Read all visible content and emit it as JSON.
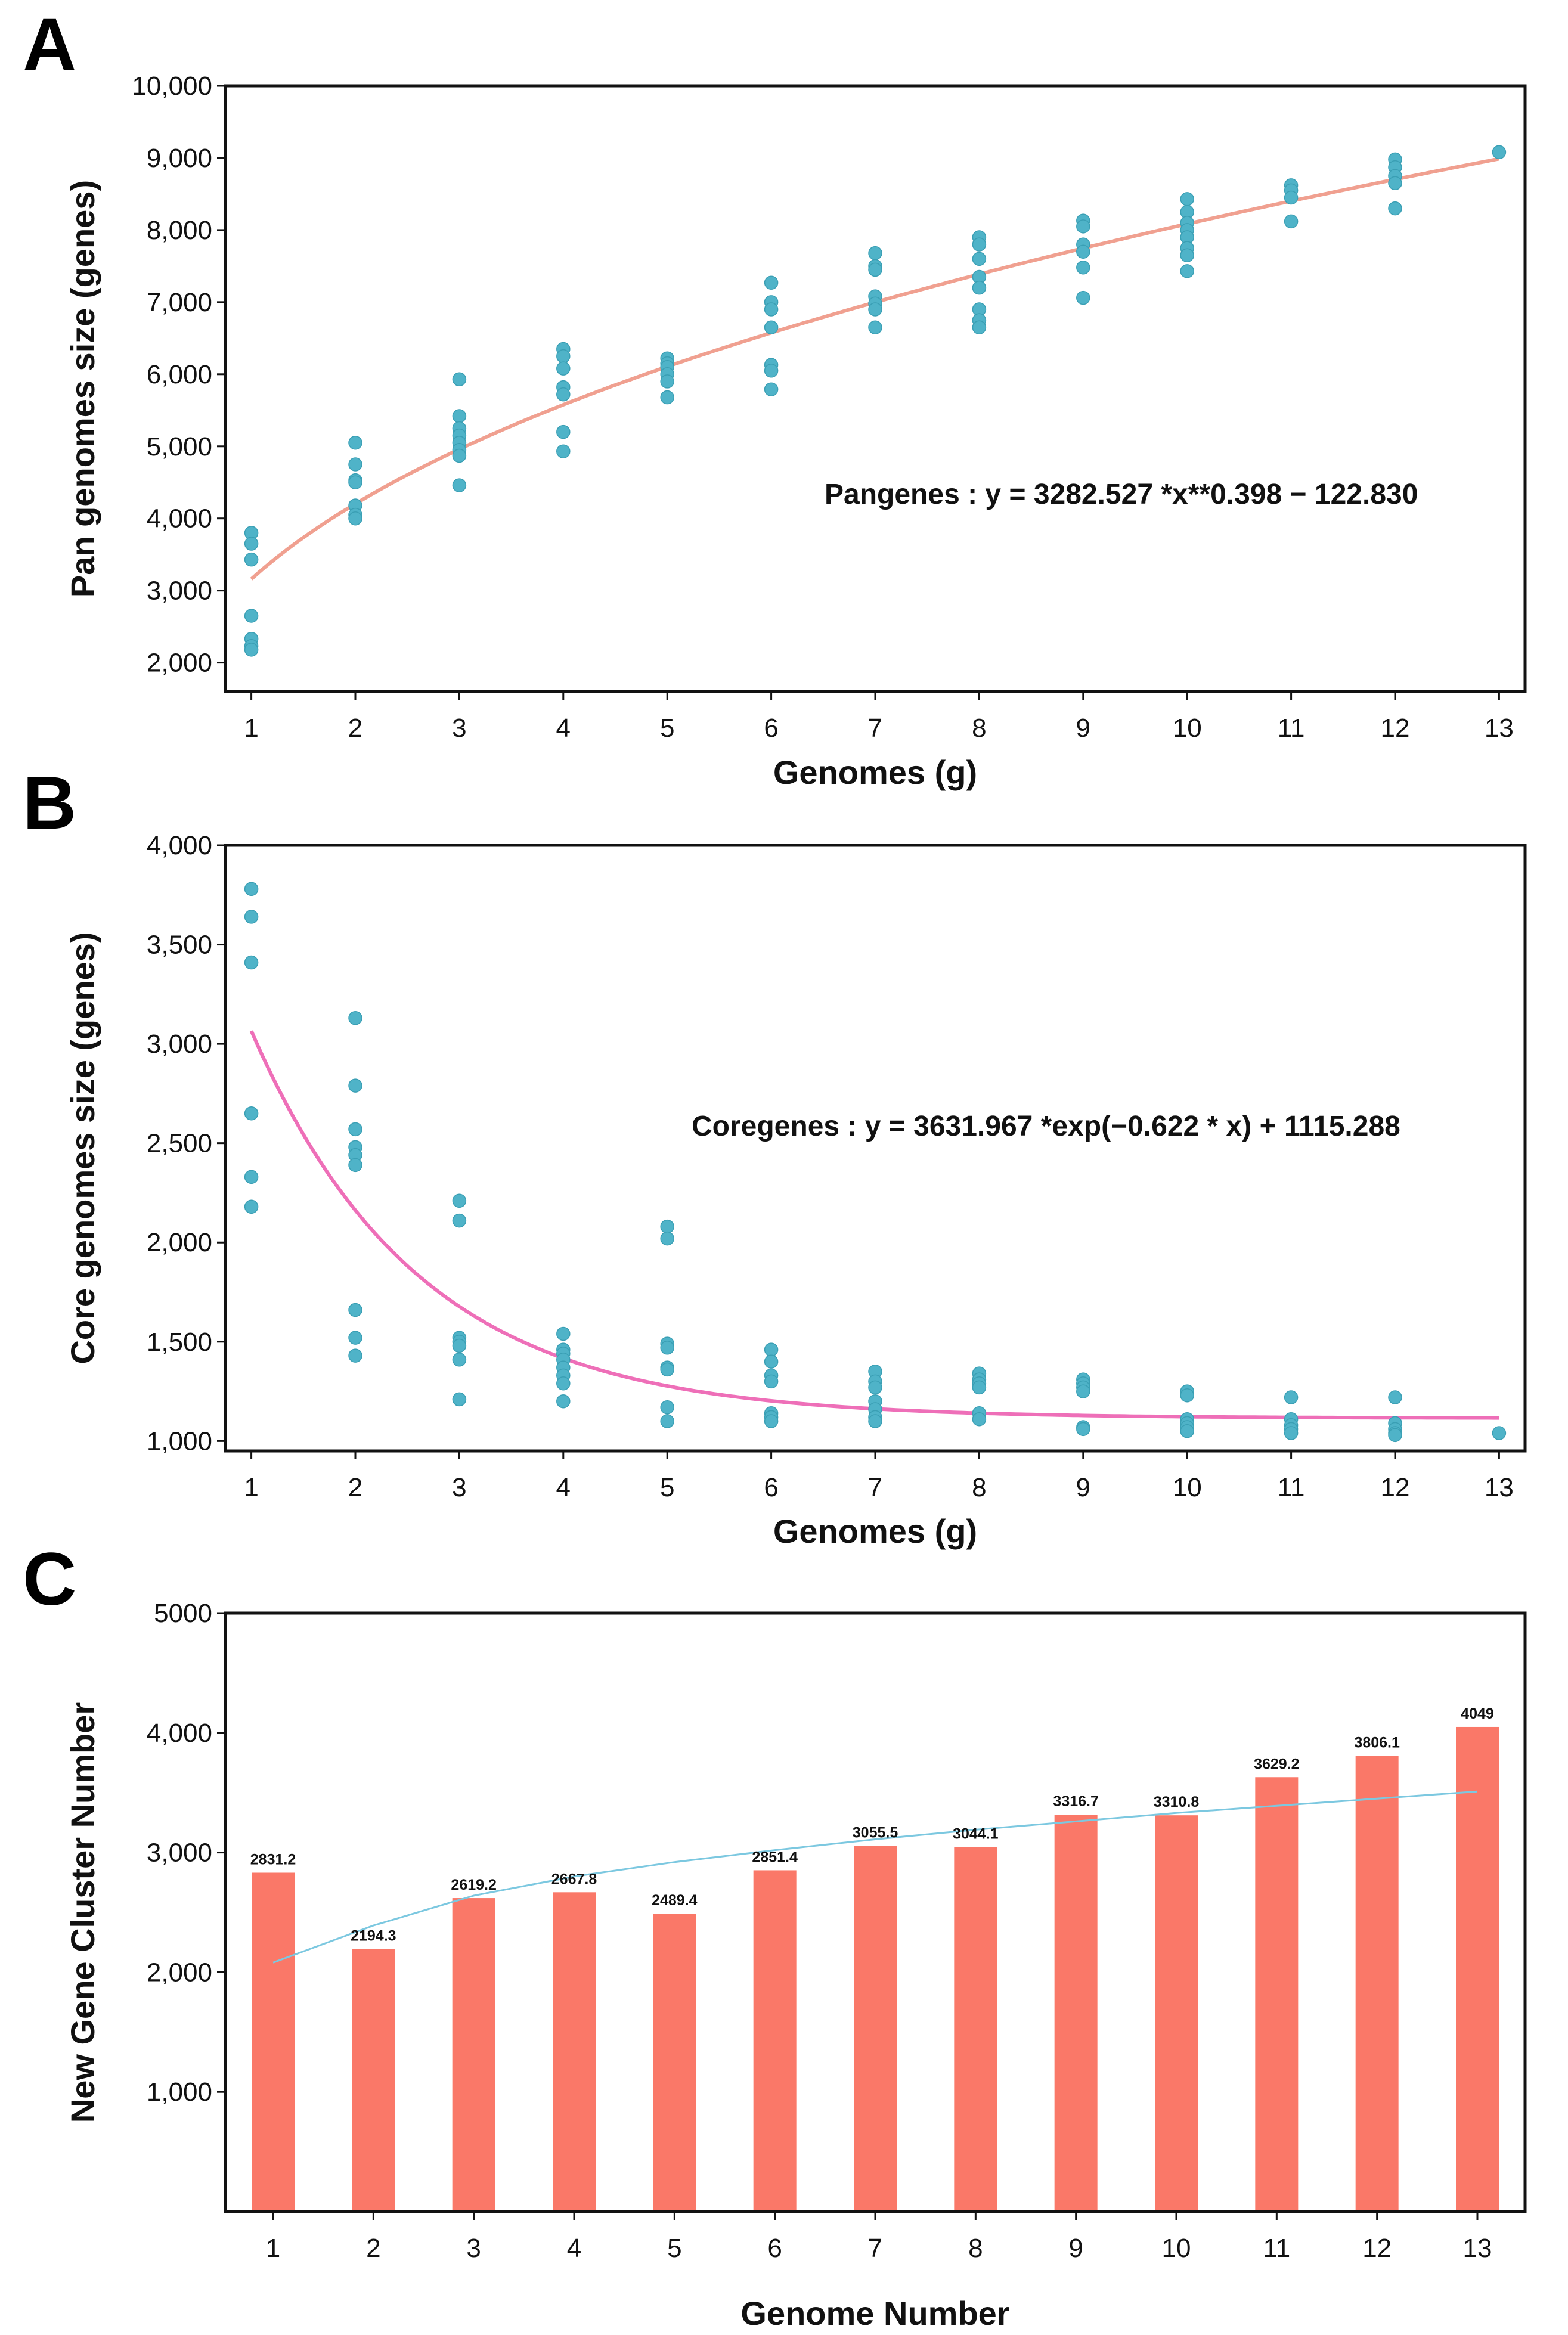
{
  "chart_data": [
    {
      "panel": "A",
      "type": "scatter",
      "xlabel": "Genomes (g)",
      "ylabel": "Pan genomes size (genes)",
      "xlim": [
        0.75,
        13.25
      ],
      "ylim": [
        1600,
        10000
      ],
      "yticks": [
        2000,
        3000,
        4000,
        5000,
        6000,
        7000,
        8000,
        9000,
        10000
      ],
      "ytick_labels": [
        "2,000",
        "3,000",
        "4,000",
        "5,000",
        "6,000",
        "7,000",
        "8,000",
        "9,000",
        "10,000"
      ],
      "xticks": [
        "1",
        "2",
        "3",
        "4",
        "5",
        "6",
        "7",
        "8",
        "9",
        "10",
        "11",
        "12",
        "13"
      ],
      "points_color": "#4fb3c8",
      "fit_color": "#f0a090",
      "equation": "Pangenes : y = 3282.527 *x**0.398 − 122.830",
      "fit": {
        "a": 3282.527,
        "b": 0.398,
        "c": -122.83,
        "form": "power"
      },
      "series": [
        {
          "x": 1,
          "values": [
            3800,
            3650,
            3430,
            2650,
            2330,
            2230,
            2180
          ]
        },
        {
          "x": 2,
          "values": [
            5050,
            4750,
            4530,
            4500,
            4180,
            4050,
            4000
          ]
        },
        {
          "x": 3,
          "values": [
            5930,
            5420,
            5250,
            5150,
            5050,
            4950,
            4870,
            4460
          ]
        },
        {
          "x": 4,
          "values": [
            6350,
            6250,
            6080,
            5820,
            5720,
            5200,
            4930
          ]
        },
        {
          "x": 5,
          "values": [
            6220,
            6150,
            6100,
            6000,
            5900,
            5680
          ]
        },
        {
          "x": 6,
          "values": [
            7270,
            7000,
            6900,
            6650,
            6130,
            6050,
            5790
          ]
        },
        {
          "x": 7,
          "values": [
            7680,
            7500,
            7450,
            7080,
            6980,
            6900,
            6650
          ]
        },
        {
          "x": 8,
          "values": [
            7900,
            7800,
            7600,
            7350,
            7200,
            6900,
            6750,
            6650
          ]
        },
        {
          "x": 9,
          "values": [
            8130,
            8050,
            7800,
            7700,
            7480,
            7060
          ]
        },
        {
          "x": 10,
          "values": [
            8430,
            8250,
            8100,
            8000,
            7900,
            7750,
            7650,
            7430
          ]
        },
        {
          "x": 11,
          "values": [
            8620,
            8550,
            8450,
            8120
          ]
        },
        {
          "x": 12,
          "values": [
            8980,
            8870,
            8750,
            8650,
            8300
          ]
        },
        {
          "x": 13,
          "values": [
            9080
          ]
        }
      ]
    },
    {
      "panel": "B",
      "type": "scatter",
      "xlabel": "Genomes (g)",
      "ylabel": "Core genomes size (genes)",
      "xlim": [
        0.75,
        13.25
      ],
      "ylim": [
        950,
        4000
      ],
      "yticks": [
        1000,
        1500,
        2000,
        2500,
        3000,
        3500,
        4000
      ],
      "ytick_labels": [
        "1,000",
        "1,500",
        "2,000",
        "2,500",
        "3,000",
        "3,500",
        "4,000"
      ],
      "xticks": [
        "1",
        "2",
        "3",
        "4",
        "5",
        "6",
        "7",
        "8",
        "9",
        "10",
        "11",
        "12",
        "13"
      ],
      "points_color": "#4fb3c8",
      "fit_color": "#ee6fb8",
      "equation": "Coregenes : y = 3631.967 *exp(−0.622 * x) + 1115.288",
      "fit": {
        "a": 3631.967,
        "b": -0.622,
        "c": 1115.288,
        "form": "exp"
      },
      "series": [
        {
          "x": 1,
          "values": [
            3780,
            3640,
            3410,
            2650,
            2330,
            2180
          ]
        },
        {
          "x": 2,
          "values": [
            3130,
            2790,
            2570,
            2480,
            2440,
            2390,
            1660,
            1520,
            1430
          ]
        },
        {
          "x": 3,
          "values": [
            2210,
            2110,
            1520,
            1500,
            1480,
            1410,
            1210
          ]
        },
        {
          "x": 4,
          "values": [
            1540,
            1460,
            1440,
            1410,
            1370,
            1330,
            1290,
            1200
          ]
        },
        {
          "x": 5,
          "values": [
            2080,
            2020,
            1490,
            1470,
            1370,
            1360,
            1170,
            1100
          ]
        },
        {
          "x": 6,
          "values": [
            1460,
            1400,
            1330,
            1300,
            1140,
            1120,
            1100
          ]
        },
        {
          "x": 7,
          "values": [
            1350,
            1300,
            1270,
            1200,
            1160,
            1120,
            1100
          ]
        },
        {
          "x": 8,
          "values": [
            1340,
            1310,
            1290,
            1270,
            1140,
            1110
          ]
        },
        {
          "x": 9,
          "values": [
            1310,
            1290,
            1270,
            1250,
            1070,
            1060
          ]
        },
        {
          "x": 10,
          "values": [
            1250,
            1230,
            1110,
            1090,
            1070,
            1050
          ]
        },
        {
          "x": 11,
          "values": [
            1220,
            1110,
            1080,
            1060,
            1040
          ]
        },
        {
          "x": 12,
          "values": [
            1220,
            1090,
            1060,
            1040,
            1030
          ]
        },
        {
          "x": 13,
          "values": [
            1040
          ]
        }
      ]
    },
    {
      "panel": "C",
      "type": "bar",
      "xlabel": "Genome Number",
      "ylabel": "New Gene Cluster Number",
      "ylim": [
        0,
        5000
      ],
      "yticks": [
        1000,
        2000,
        3000,
        4000,
        5000
      ],
      "ytick_labels": [
        "1,000",
        "2,000",
        "3,000",
        "4,000",
        "5000"
      ],
      "categories": [
        "1",
        "2",
        "3",
        "4",
        "5",
        "6",
        "7",
        "8",
        "9",
        "10",
        "11",
        "12",
        "13"
      ],
      "values": [
        2831.2,
        2194.3,
        2619.2,
        2667.8,
        2489.4,
        2851.4,
        3055.5,
        3044.1,
        3316.7,
        3310.8,
        3629.2,
        3806.1,
        4049
      ],
      "value_labels": [
        "2831.2",
        "2194.3",
        "2619.2",
        "2667.8",
        "2489.4",
        "2851.4",
        "3055.5",
        "3044.1",
        "3316.7",
        "3310.8",
        "3629.2",
        "3806.1",
        "4049"
      ],
      "bar_color": "#fa7868",
      "trend_color": "#7cc8e0",
      "trend_values": [
        2080,
        2390,
        2640,
        2800,
        2920,
        3020,
        3110,
        3190,
        3260,
        3330,
        3390,
        3450,
        3510
      ]
    }
  ]
}
